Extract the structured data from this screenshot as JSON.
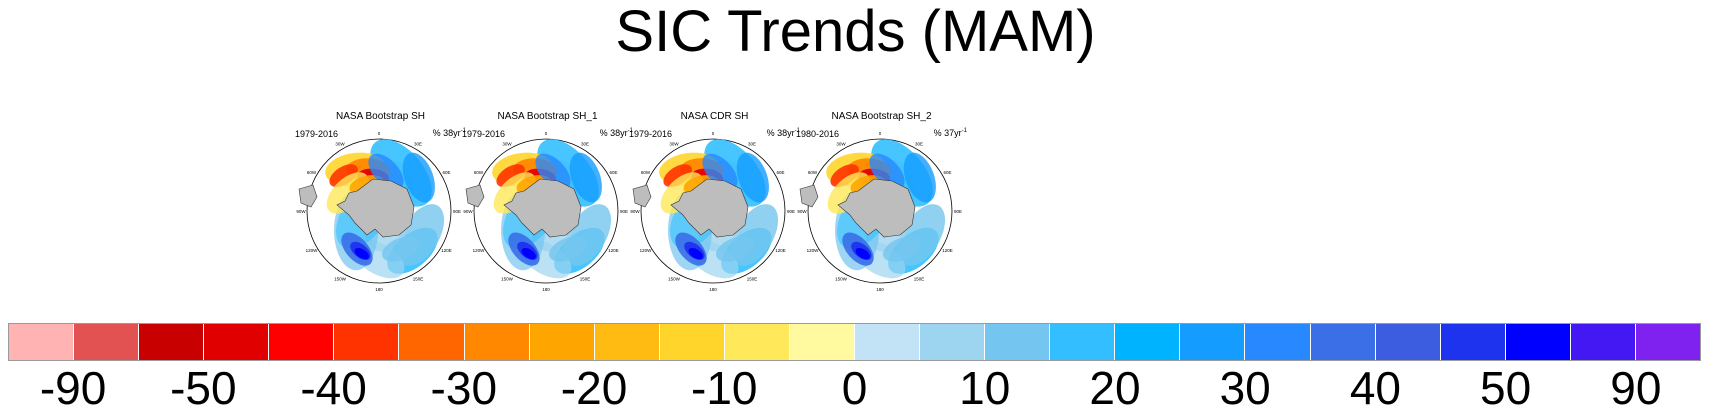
{
  "title": "SIC Trends (MAM)",
  "panels": [
    {
      "name": "NASA Bootstrap SH",
      "years": "1979-2016",
      "units_prefix": "% 38yr",
      "units_exp": "-1"
    },
    {
      "name": "NASA Bootstrap SH_1",
      "years": "1979-2016",
      "units_prefix": "% 38yr",
      "units_exp": "-1"
    },
    {
      "name": "NASA CDR SH",
      "years": "1979-2016",
      "units_prefix": "% 38yr",
      "units_exp": "-1"
    },
    {
      "name": "NASA Bootstrap SH_2",
      "years": "1980-2016",
      "units_prefix": "% 37yr",
      "units_exp": "-1"
    }
  ],
  "map_labels": [
    "0",
    "30E",
    "60E",
    "90E",
    "120E",
    "150E",
    "180",
    "150W",
    "120W",
    "90W",
    "60W",
    "30W"
  ],
  "colorbar": {
    "colors": [
      "#ffb3b3",
      "#e35252",
      "#c80000",
      "#e00000",
      "#ff0000",
      "#ff3300",
      "#ff6600",
      "#ff8800",
      "#ffa500",
      "#ffbb11",
      "#ffd52b",
      "#ffe85a",
      "#fff9a0",
      "#c1e3f5",
      "#9dd4f0",
      "#74c5ef",
      "#33bfff",
      "#00b3ff",
      "#149cff",
      "#2788ff",
      "#3a6fe8",
      "#3d5de0",
      "#1e33ee",
      "#0000ff",
      "#4418f2",
      "#7f22f0"
    ],
    "tick_labels": [
      {
        "label": "-90",
        "boundary": 1
      },
      {
        "label": "-50",
        "boundary": 3
      },
      {
        "label": "-40",
        "boundary": 5
      },
      {
        "label": "-30",
        "boundary": 7
      },
      {
        "label": "-20",
        "boundary": 9
      },
      {
        "label": "-10",
        "boundary": 11
      },
      {
        "label": "0",
        "boundary": 13
      },
      {
        "label": "10",
        "boundary": 15
      },
      {
        "label": "20",
        "boundary": 17
      },
      {
        "label": "30",
        "boundary": 19
      },
      {
        "label": "40",
        "boundary": 21
      },
      {
        "label": "50",
        "boundary": 23
      },
      {
        "label": "90",
        "boundary": 25
      }
    ]
  },
  "chart_data": {
    "type": "heatmap",
    "title": "SIC Trends (MAM)",
    "subplots": [
      "NASA Bootstrap SH",
      "NASA Bootstrap SH_1",
      "NASA CDR SH",
      "NASA Bootstrap SH_2"
    ],
    "colorbar_ticks": [
      -90,
      -50,
      -40,
      -30,
      -20,
      -10,
      0,
      10,
      20,
      30,
      40,
      50,
      90
    ]
  }
}
